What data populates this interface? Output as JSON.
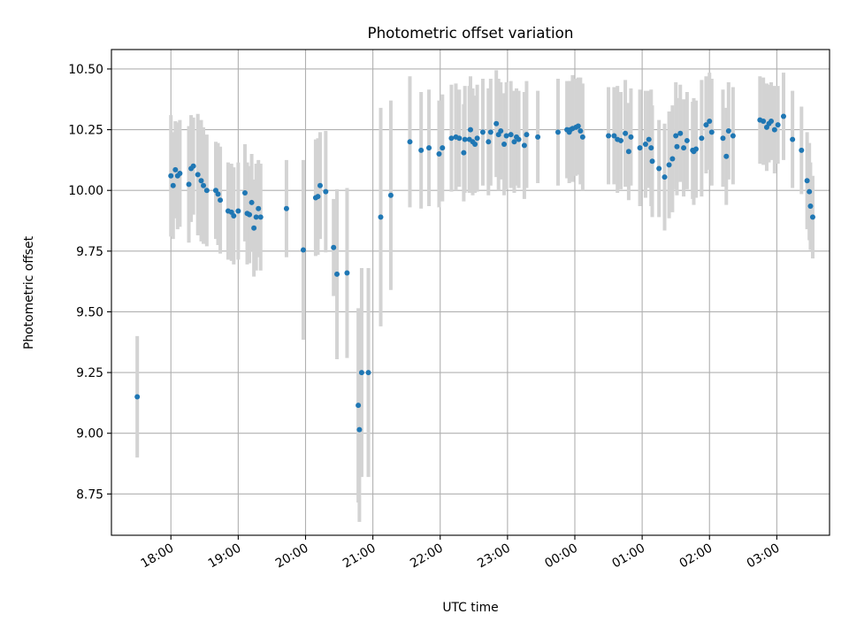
{
  "chart_data": {
    "type": "scatter",
    "title": "Photometric offset variation",
    "xlabel": "UTC time",
    "ylabel": "Photometric offset",
    "x_unit": "UTC time of night (HH:MM; night spans 17:00 to 04:00)",
    "xlim": [
      "17:07",
      "03:47"
    ],
    "ylim": [
      8.58,
      10.58
    ],
    "grid": true,
    "x_tick_labels": [
      "18:00",
      "19:00",
      "20:00",
      "21:00",
      "22:00",
      "23:00",
      "00:00",
      "01:00",
      "02:00",
      "03:00"
    ],
    "y_tick_values": [
      8.75,
      9.0,
      9.25,
      9.5,
      9.75,
      10.0,
      10.25,
      10.5
    ],
    "y_tick_labels": [
      "8.75",
      "9.00",
      "9.25",
      "9.50",
      "9.75",
      "10.00",
      "10.25",
      "10.50"
    ],
    "colors": {
      "points": "#1f77b4",
      "errorbars": "#d3d3d3",
      "grid": "#b0b0b0"
    },
    "points": [
      [
        "17:30",
        9.15,
        0.25
      ],
      [
        "18:00",
        10.06,
        0.25
      ],
      [
        "18:02",
        10.02,
        0.22
      ],
      [
        "18:04",
        10.085,
        0.2
      ],
      [
        "18:06",
        10.06,
        0.22
      ],
      [
        "18:08",
        10.07,
        0.22
      ],
      [
        "18:16",
        10.025,
        0.24
      ],
      [
        "18:18",
        10.09,
        0.22
      ],
      [
        "18:20",
        10.1,
        0.2
      ],
      [
        "18:24",
        10.065,
        0.25
      ],
      [
        "18:27",
        10.04,
        0.25
      ],
      [
        "18:29",
        10.02,
        0.24
      ],
      [
        "18:32",
        10.0,
        0.23
      ],
      [
        "18:40",
        10.0,
        0.2
      ],
      [
        "18:42",
        9.985,
        0.21
      ],
      [
        "18:44",
        9.96,
        0.22
      ],
      [
        "18:51",
        9.915,
        0.2
      ],
      [
        "18:54",
        9.91,
        0.2
      ],
      [
        "18:56",
        9.895,
        0.2
      ],
      [
        "19:00",
        9.915,
        0.2
      ],
      [
        "19:06",
        9.99,
        0.2
      ],
      [
        "19:08",
        9.905,
        0.21
      ],
      [
        "19:10",
        9.9,
        0.2
      ],
      [
        "19:12",
        9.95,
        0.2
      ],
      [
        "19:14",
        9.845,
        0.2
      ],
      [
        "19:16",
        9.89,
        0.22
      ],
      [
        "19:18",
        9.925,
        0.2
      ],
      [
        "19:20",
        9.89,
        0.22
      ],
      [
        "19:43",
        9.925,
        0.2
      ],
      [
        "19:58",
        9.755,
        0.37
      ],
      [
        "20:09",
        9.97,
        0.24
      ],
      [
        "20:11",
        9.975,
        0.24
      ],
      [
        "20:13",
        10.02,
        0.22
      ],
      [
        "20:18",
        9.995,
        0.25
      ],
      [
        "20:25",
        9.765,
        0.2
      ],
      [
        "20:28",
        9.655,
        0.35
      ],
      [
        "20:37",
        9.66,
        0.35
      ],
      [
        "20:47",
        9.115,
        0.4
      ],
      [
        "20:48",
        9.015,
        0.38
      ],
      [
        "20:50",
        9.25,
        0.43
      ],
      [
        "20:56",
        9.25,
        0.43
      ],
      [
        "21:07",
        9.89,
        0.45
      ],
      [
        "21:16",
        9.98,
        0.39
      ],
      [
        "21:33",
        10.2,
        0.27
      ],
      [
        "21:43",
        10.165,
        0.24
      ],
      [
        "21:50",
        10.175,
        0.24
      ],
      [
        "21:59",
        10.15,
        0.22
      ],
      [
        "22:02",
        10.175,
        0.22
      ],
      [
        "22:10",
        10.215,
        0.22
      ],
      [
        "22:14",
        10.22,
        0.22
      ],
      [
        "22:17",
        10.215,
        0.2
      ],
      [
        "22:21",
        10.155,
        0.2
      ],
      [
        "22:22",
        10.21,
        0.22
      ],
      [
        "22:26",
        10.21,
        0.22
      ],
      [
        "22:27",
        10.25,
        0.22
      ],
      [
        "22:29",
        10.2,
        0.22
      ],
      [
        "22:31",
        10.19,
        0.2
      ],
      [
        "22:33",
        10.215,
        0.22
      ],
      [
        "22:38",
        10.24,
        0.22
      ],
      [
        "22:43",
        10.2,
        0.22
      ],
      [
        "22:45",
        10.24,
        0.22
      ],
      [
        "22:50",
        10.275,
        0.22
      ],
      [
        "22:52",
        10.23,
        0.23
      ],
      [
        "22:54",
        10.245,
        0.2
      ],
      [
        "22:57",
        10.19,
        0.21
      ],
      [
        "22:59",
        10.225,
        0.22
      ],
      [
        "23:03",
        10.23,
        0.22
      ],
      [
        "23:06",
        10.2,
        0.21
      ],
      [
        "23:08",
        10.22,
        0.2
      ],
      [
        "23:10",
        10.21,
        0.2
      ],
      [
        "23:15",
        10.185,
        0.22
      ],
      [
        "23:17",
        10.23,
        0.22
      ],
      [
        "23:27",
        10.22,
        0.19
      ],
      [
        "23:45",
        10.24,
        0.22
      ],
      [
        "23:53",
        10.25,
        0.2
      ],
      [
        "23:55",
        10.24,
        0.21
      ],
      [
        "23:56",
        10.25,
        0.2
      ],
      [
        "23:58",
        10.255,
        0.22
      ],
      [
        "00:01",
        10.26,
        0.2
      ],
      [
        "00:03",
        10.265,
        0.2
      ],
      [
        "00:05",
        10.245,
        0.22
      ],
      [
        "00:07",
        10.22,
        0.22
      ],
      [
        "00:30",
        10.225,
        0.2
      ],
      [
        "00:35",
        10.225,
        0.2
      ],
      [
        "00:38",
        10.21,
        0.22
      ],
      [
        "00:41",
        10.205,
        0.2
      ],
      [
        "00:45",
        10.235,
        0.22
      ],
      [
        "00:48",
        10.16,
        0.2
      ],
      [
        "00:50",
        10.22,
        0.2
      ],
      [
        "00:58",
        10.175,
        0.24
      ],
      [
        "01:03",
        10.19,
        0.22
      ],
      [
        "01:06",
        10.21,
        0.2
      ],
      [
        "01:08",
        10.175,
        0.24
      ],
      [
        "01:09",
        10.12,
        0.23
      ],
      [
        "01:15",
        10.09,
        0.2
      ],
      [
        "01:20",
        10.055,
        0.22
      ],
      [
        "01:24",
        10.105,
        0.22
      ],
      [
        "01:27",
        10.13,
        0.22
      ],
      [
        "01:30",
        10.225,
        0.22
      ],
      [
        "01:31",
        10.18,
        0.2
      ],
      [
        "01:34",
        10.235,
        0.2
      ],
      [
        "01:37",
        10.175,
        0.2
      ],
      [
        "01:40",
        10.205,
        0.2
      ],
      [
        "01:45",
        10.165,
        0.2
      ],
      [
        "01:46",
        10.16,
        0.22
      ],
      [
        "01:48",
        10.17,
        0.2
      ],
      [
        "01:53",
        10.215,
        0.24
      ],
      [
        "01:57",
        10.27,
        0.2
      ],
      [
        "02:00",
        10.285,
        0.2
      ],
      [
        "02:02",
        10.24,
        0.22
      ],
      [
        "02:12",
        10.215,
        0.2
      ],
      [
        "02:15",
        10.14,
        0.2
      ],
      [
        "02:17",
        10.245,
        0.2
      ],
      [
        "02:21",
        10.225,
        0.2
      ],
      [
        "02:45",
        10.29,
        0.18
      ],
      [
        "02:48",
        10.285,
        0.18
      ],
      [
        "02:51",
        10.26,
        0.18
      ],
      [
        "02:53",
        10.275,
        0.16
      ],
      [
        "02:55",
        10.285,
        0.16
      ],
      [
        "02:58",
        10.25,
        0.18
      ],
      [
        "03:01",
        10.27,
        0.16
      ],
      [
        "03:06",
        10.305,
        0.18
      ],
      [
        "03:14",
        10.21,
        0.2
      ],
      [
        "03:22",
        10.165,
        0.18
      ],
      [
        "03:27",
        10.04,
        0.2
      ],
      [
        "03:29",
        9.995,
        0.2
      ],
      [
        "03:30",
        9.935,
        0.18
      ],
      [
        "03:32",
        9.89,
        0.17
      ]
    ]
  }
}
